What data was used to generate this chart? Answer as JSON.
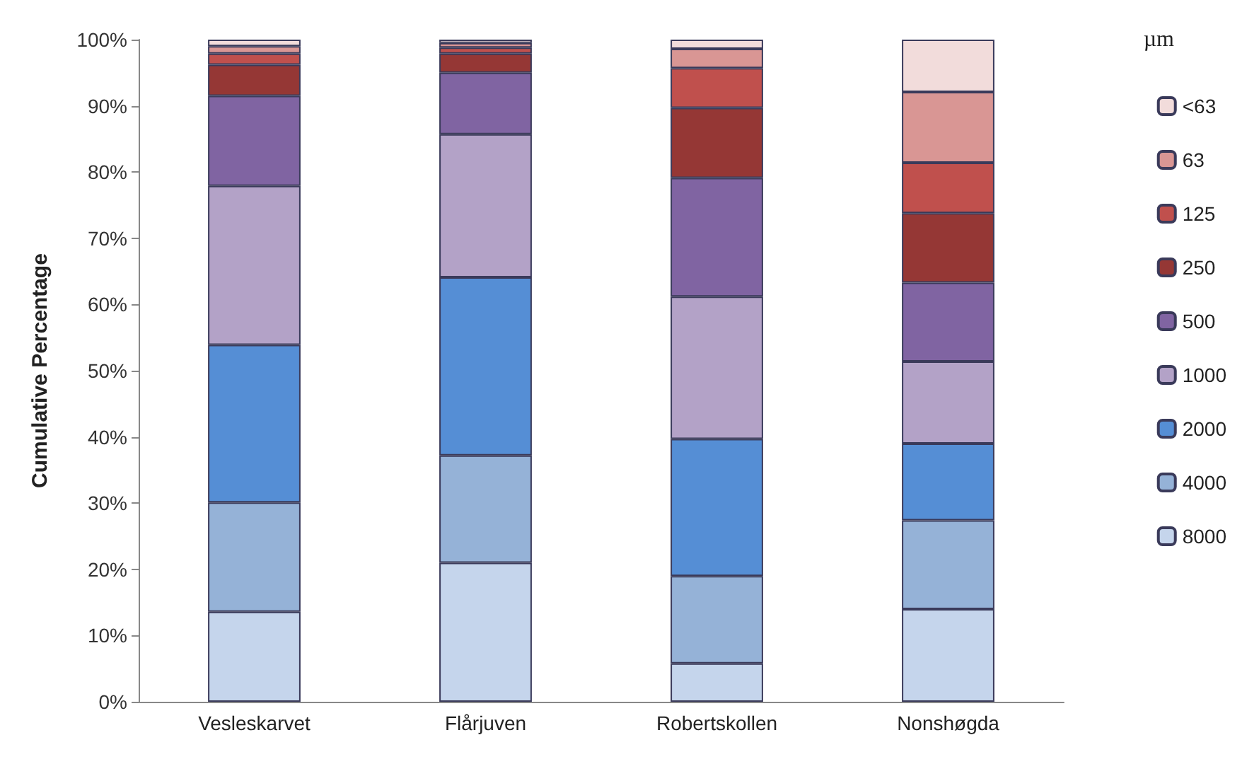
{
  "chart_data": {
    "type": "bar",
    "stacked": true,
    "ylabel": "Cumulative Percentage",
    "legend_title": "µm",
    "legend": "right",
    "grid": false,
    "categories": [
      "Vesleskarvet",
      "Flårjuven",
      "Robertskollen",
      "Nonshøgda"
    ],
    "ylim": [
      0,
      100
    ],
    "yticks": [
      {
        "value": 0,
        "label": "0%"
      },
      {
        "value": 10,
        "label": "10%"
      },
      {
        "value": 20,
        "label": "20%"
      },
      {
        "value": 30,
        "label": "30%"
      },
      {
        "value": 40,
        "label": "40%"
      },
      {
        "value": 50,
        "label": "50%"
      },
      {
        "value": 60,
        "label": "60%"
      },
      {
        "value": 70,
        "label": "70%"
      },
      {
        "value": 80,
        "label": "80%"
      },
      {
        "value": 90,
        "label": "90%"
      },
      {
        "value": 100,
        "label": "100%"
      }
    ],
    "series": [
      {
        "name": "8000",
        "color": "#c5d5ec",
        "values": [
          13.6,
          21.0,
          5.8,
          14.0
        ]
      },
      {
        "name": "4000",
        "color": "#95b2d7",
        "values": [
          16.5,
          16.2,
          13.2,
          13.4
        ]
      },
      {
        "name": "2000",
        "color": "#558ed5",
        "values": [
          23.8,
          26.9,
          20.7,
          11.6
        ]
      },
      {
        "name": "1000",
        "color": "#b3a2c7",
        "values": [
          24.0,
          21.6,
          21.5,
          12.4
        ]
      },
      {
        "name": "500",
        "color": "#8064a2",
        "values": [
          13.6,
          9.3,
          17.9,
          11.9
        ]
      },
      {
        "name": "250",
        "color": "#953735",
        "values": [
          4.7,
          2.9,
          10.6,
          10.5
        ]
      },
      {
        "name": "125",
        "color": "#c0504d",
        "values": [
          1.7,
          0.9,
          6.0,
          7.6
        ]
      },
      {
        "name": "63",
        "color": "#d99694",
        "values": [
          1.1,
          0.7,
          2.9,
          10.7
        ]
      },
      {
        "name": "<63",
        "color": "#f2dcdb",
        "values": [
          1.0,
          0.5,
          1.4,
          7.9
        ]
      }
    ]
  }
}
